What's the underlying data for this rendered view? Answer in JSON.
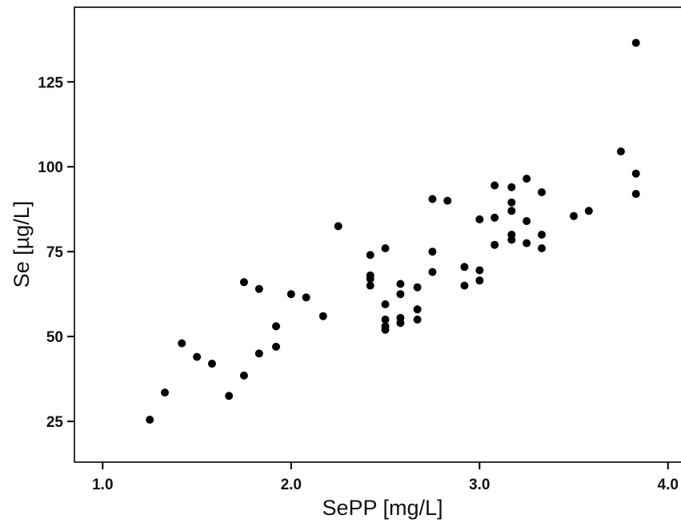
{
  "chart_data": {
    "type": "scatter",
    "title": "",
    "xlabel": "SePP [mg/L]",
    "ylabel": "Se [µg/L]",
    "xlim": [
      0.85,
      4.12
    ],
    "ylim": [
      13,
      147
    ],
    "xticks": [
      1.0,
      2.0,
      3.0,
      4.0
    ],
    "xtick_labels": [
      "1.0",
      "2.0",
      "3.0",
      "4.0"
    ],
    "yticks": [
      25,
      50,
      75,
      100,
      125
    ],
    "ytick_labels": [
      "25",
      "50",
      "75",
      "100",
      "125"
    ],
    "grid": false,
    "legend": "none",
    "marker_color": "#000000",
    "points": [
      {
        "x": 1.25,
        "y": 25.5
      },
      {
        "x": 1.33,
        "y": 33.5
      },
      {
        "x": 1.42,
        "y": 48
      },
      {
        "x": 1.5,
        "y": 44
      },
      {
        "x": 1.58,
        "y": 42
      },
      {
        "x": 1.67,
        "y": 32.5
      },
      {
        "x": 1.75,
        "y": 38.5
      },
      {
        "x": 1.75,
        "y": 66
      },
      {
        "x": 1.83,
        "y": 45
      },
      {
        "x": 1.83,
        "y": 64
      },
      {
        "x": 1.92,
        "y": 47
      },
      {
        "x": 1.92,
        "y": 53
      },
      {
        "x": 2.0,
        "y": 62.5
      },
      {
        "x": 2.08,
        "y": 61.5
      },
      {
        "x": 2.17,
        "y": 56
      },
      {
        "x": 2.25,
        "y": 82.5
      },
      {
        "x": 2.42,
        "y": 65
      },
      {
        "x": 2.42,
        "y": 67
      },
      {
        "x": 2.42,
        "y": 68
      },
      {
        "x": 2.42,
        "y": 74
      },
      {
        "x": 2.5,
        "y": 52
      },
      {
        "x": 2.5,
        "y": 53
      },
      {
        "x": 2.5,
        "y": 55
      },
      {
        "x": 2.5,
        "y": 59.5
      },
      {
        "x": 2.5,
        "y": 76
      },
      {
        "x": 2.58,
        "y": 54
      },
      {
        "x": 2.58,
        "y": 55.5
      },
      {
        "x": 2.58,
        "y": 62.5
      },
      {
        "x": 2.58,
        "y": 65.5
      },
      {
        "x": 2.67,
        "y": 55
      },
      {
        "x": 2.67,
        "y": 58
      },
      {
        "x": 2.67,
        "y": 64.5
      },
      {
        "x": 2.75,
        "y": 69
      },
      {
        "x": 2.75,
        "y": 75
      },
      {
        "x": 2.75,
        "y": 90.5
      },
      {
        "x": 2.83,
        "y": 90
      },
      {
        "x": 2.92,
        "y": 65
      },
      {
        "x": 2.92,
        "y": 70.5
      },
      {
        "x": 3.0,
        "y": 66.5
      },
      {
        "x": 3.0,
        "y": 69.5
      },
      {
        "x": 3.0,
        "y": 84.5
      },
      {
        "x": 3.08,
        "y": 77
      },
      {
        "x": 3.08,
        "y": 85
      },
      {
        "x": 3.08,
        "y": 94.5
      },
      {
        "x": 3.17,
        "y": 78.5
      },
      {
        "x": 3.17,
        "y": 80
      },
      {
        "x": 3.17,
        "y": 87
      },
      {
        "x": 3.17,
        "y": 89.5
      },
      {
        "x": 3.17,
        "y": 94
      },
      {
        "x": 3.25,
        "y": 77.5
      },
      {
        "x": 3.25,
        "y": 84
      },
      {
        "x": 3.25,
        "y": 96.5
      },
      {
        "x": 3.33,
        "y": 76
      },
      {
        "x": 3.33,
        "y": 80
      },
      {
        "x": 3.33,
        "y": 92.5
      },
      {
        "x": 3.5,
        "y": 85.5
      },
      {
        "x": 3.58,
        "y": 87
      },
      {
        "x": 3.75,
        "y": 104.5
      },
      {
        "x": 3.83,
        "y": 92
      },
      {
        "x": 3.83,
        "y": 98
      },
      {
        "x": 3.83,
        "y": 136.5
      }
    ]
  }
}
